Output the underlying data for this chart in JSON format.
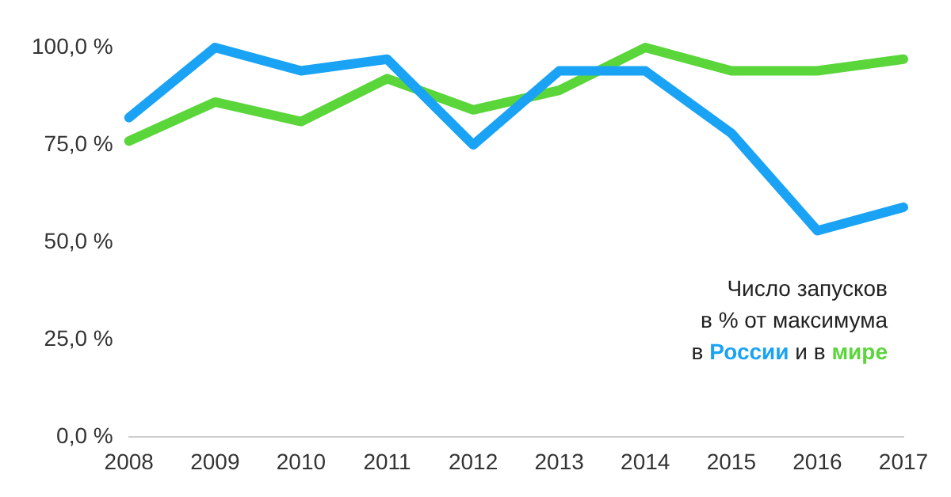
{
  "chart_data": {
    "type": "line",
    "categories": [
      "2008",
      "2009",
      "2010",
      "2011",
      "2012",
      "2013",
      "2014",
      "2015",
      "2016",
      "2017"
    ],
    "series": [
      {
        "name": "России",
        "color": "#1aa3f5",
        "values": [
          82,
          100,
          94,
          97,
          75,
          94,
          94,
          78,
          53,
          59
        ]
      },
      {
        "name": "мире",
        "color": "#5ad63a",
        "values": [
          76,
          86,
          81,
          92,
          84,
          89,
          100,
          94,
          94,
          97
        ]
      }
    ],
    "ylim": [
      0,
      100
    ],
    "yticks": [
      {
        "value": 0,
        "label": "0,0 %"
      },
      {
        "value": 25,
        "label": "25,0 %"
      },
      {
        "value": 50,
        "label": "50,0 %"
      },
      {
        "value": 75,
        "label": "75,0 %"
      },
      {
        "value": 100,
        "label": "100,0 %"
      }
    ],
    "grid": false,
    "legend": "bottom right",
    "marker": "none",
    "line_style": "solid",
    "annotations": [
      "Число запусков",
      "в % от максимума",
      "в",
      "и в"
    ]
  }
}
